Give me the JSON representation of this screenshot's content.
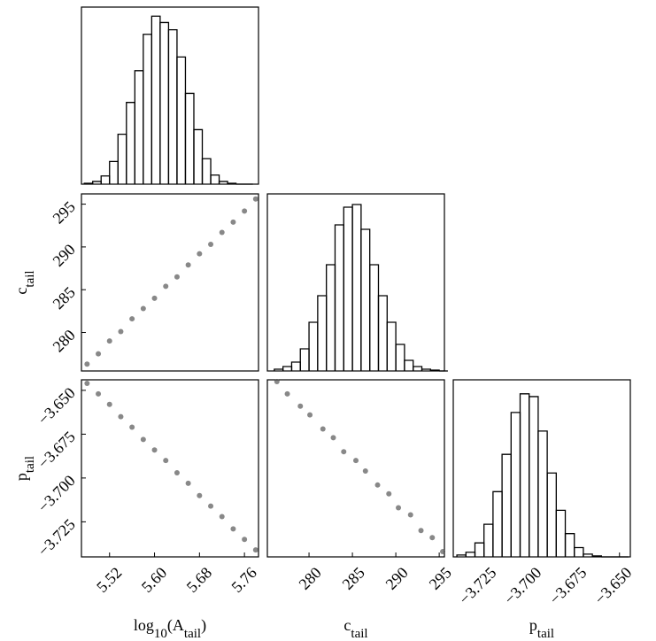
{
  "chart_data": [
    {
      "type": "histogram",
      "bins": [
        5.475,
        5.49,
        5.505,
        5.52,
        5.535,
        5.55,
        5.565,
        5.58,
        5.595,
        5.61,
        5.625,
        5.64,
        5.655,
        5.67,
        5.685,
        5.7,
        5.715,
        5.73,
        5.745,
        5.76,
        5.775
      ],
      "counts": [
        1,
        3,
        9,
        25,
        55,
        90,
        125,
        165,
        185,
        178,
        170,
        140,
        100,
        60,
        28,
        10,
        3,
        1,
        0,
        0
      ],
      "xlim": [
        5.47,
        5.785
      ],
      "ylim": [
        0,
        195
      ],
      "color": "#000000"
    },
    {
      "type": "scatter",
      "x": [
        5.48,
        5.5,
        5.52,
        5.54,
        5.56,
        5.58,
        5.6,
        5.62,
        5.64,
        5.66,
        5.68,
        5.7,
        5.72,
        5.74,
        5.76,
        5.78
      ],
      "y": [
        276.3,
        277.5,
        279.0,
        280.1,
        281.6,
        282.8,
        284.0,
        285.4,
        286.5,
        287.9,
        289.2,
        290.3,
        291.7,
        292.9,
        294.2,
        295.6
      ],
      "xlim": [
        5.47,
        5.785
      ],
      "ylim": [
        275.5,
        296.2
      ],
      "yticks": [
        280,
        285,
        290,
        295
      ],
      "ylabel": [
        "c",
        "tail"
      ],
      "color": "#555555"
    },
    {
      "type": "histogram",
      "bins": [
        276,
        277,
        278,
        279,
        280,
        281,
        282,
        283,
        284,
        285,
        286,
        287,
        288,
        289,
        290,
        291,
        292,
        293,
        294,
        295,
        296
      ],
      "counts": [
        2,
        5,
        10,
        25,
        55,
        85,
        120,
        165,
        185,
        188,
        160,
        120,
        85,
        55,
        30,
        12,
        5,
        2,
        1,
        0
      ],
      "xlim": [
        275.2,
        295.6
      ],
      "ylim": [
        0,
        200
      ],
      "color": "#000000"
    },
    {
      "type": "scatter",
      "x": [
        5.48,
        5.5,
        5.52,
        5.54,
        5.56,
        5.58,
        5.6,
        5.62,
        5.64,
        5.66,
        5.68,
        5.7,
        5.72,
        5.74,
        5.76,
        5.78
      ],
      "y": [
        -3.646,
        -3.652,
        -3.658,
        -3.665,
        -3.671,
        -3.678,
        -3.684,
        -3.69,
        -3.697,
        -3.703,
        -3.71,
        -3.716,
        -3.722,
        -3.729,
        -3.735,
        -3.741
      ],
      "xlim": [
        5.47,
        5.785
      ],
      "ylim": [
        -3.745,
        -3.644
      ],
      "xticks": [
        5.52,
        {
          "value": 5.6,
          "label": "5.60"
        },
        5.68,
        5.76
      ],
      "yticks": [
        {
          "value": -3.65,
          "label": "−3.650"
        },
        {
          "value": -3.675,
          "label": "−3.675"
        },
        {
          "value": -3.7,
          "label": "−3.700"
        },
        {
          "value": -3.725,
          "label": "−3.725"
        }
      ],
      "xlabel": [
        "log",
        "10",
        "(A",
        "tail",
        ")"
      ],
      "ylabel": [
        "p",
        "tail"
      ],
      "color": "#555555"
    },
    {
      "type": "scatter",
      "x": [
        276.3,
        277.5,
        279.0,
        280.1,
        281.6,
        282.8,
        284.0,
        285.4,
        286.5,
        287.9,
        289.2,
        290.3,
        291.7,
        292.9,
        294.2,
        295.4
      ],
      "y": [
        -3.645,
        -3.652,
        -3.659,
        -3.664,
        -3.672,
        -3.677,
        -3.685,
        -3.69,
        -3.696,
        -3.704,
        -3.709,
        -3.717,
        -3.721,
        -3.73,
        -3.734,
        -3.742
      ],
      "xlim": [
        275.2,
        295.6
      ],
      "ylim": [
        -3.745,
        -3.644
      ],
      "xticks": [
        280,
        285,
        290,
        295
      ],
      "xlabel": [
        "c",
        "tail"
      ],
      "color": "#555555"
    },
    {
      "type": "histogram",
      "bins": [
        -3.74,
        -3.735,
        -3.73,
        -3.725,
        -3.72,
        -3.715,
        -3.71,
        -3.705,
        -3.7,
        -3.695,
        -3.69,
        -3.685,
        -3.68,
        -3.675,
        -3.67,
        -3.665,
        -3.66,
        -3.655,
        -3.65,
        -3.645
      ],
      "counts": [
        2,
        5,
        15,
        35,
        70,
        110,
        155,
        175,
        172,
        135,
        90,
        50,
        25,
        10,
        3,
        1,
        0,
        0,
        0
      ],
      "xlim": [
        -3.742,
        -3.644
      ],
      "ylim": [
        0,
        190
      ],
      "xticks": [
        {
          "value": -3.725,
          "label": "−3.725"
        },
        {
          "value": -3.7,
          "label": "−3.700"
        },
        {
          "value": -3.675,
          "label": "−3.675"
        },
        {
          "value": -3.65,
          "label": "−3.650"
        }
      ],
      "xlabel": [
        "p",
        "tail"
      ],
      "color": "#000000"
    }
  ]
}
